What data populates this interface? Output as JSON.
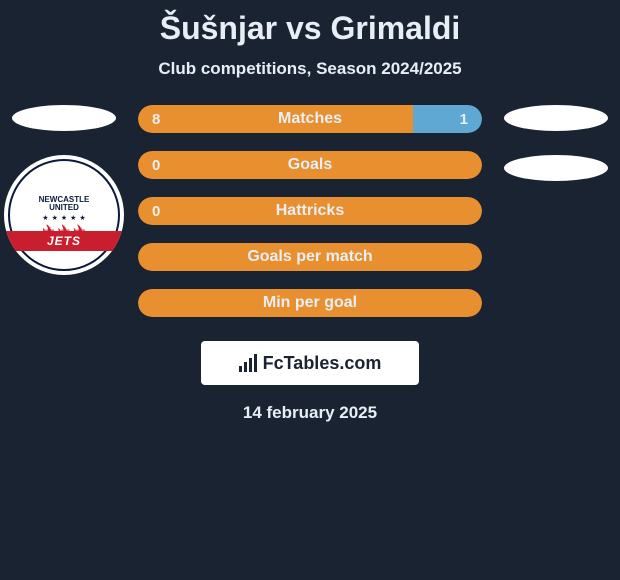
{
  "title": "Šušnjar vs Grimaldi",
  "subtitle": "Club competitions, Season 2024/2025",
  "colors": {
    "background": "#1a2332",
    "left_fill": "#e8902f",
    "right_fill": "#5fa8d3",
    "full_fill": "#e8902f",
    "text": "#e8eef5"
  },
  "bars": [
    {
      "label": "Matches",
      "left_value": "8",
      "right_value": "1",
      "left_pct": 80,
      "right_pct": 20,
      "mode": "split"
    },
    {
      "label": "Goals",
      "left_value": "0",
      "right_value": "",
      "mode": "full"
    },
    {
      "label": "Hattricks",
      "left_value": "0",
      "right_value": "",
      "mode": "full"
    },
    {
      "label": "Goals per match",
      "left_value": "",
      "right_value": "",
      "mode": "full"
    },
    {
      "label": "Min per goal",
      "left_value": "",
      "right_value": "",
      "mode": "full"
    }
  ],
  "badge": {
    "top_line1": "NEWCASTLE",
    "top_line2": "UNITED",
    "band": "JETS"
  },
  "brand": "FcTables.com",
  "date": "14 february 2025"
}
